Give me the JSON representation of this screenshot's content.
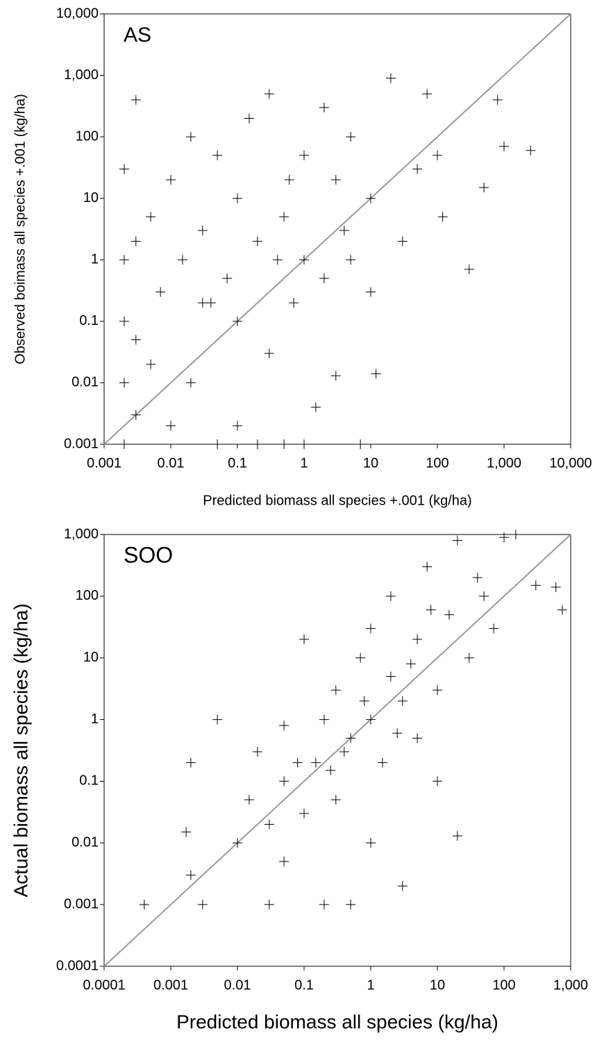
{
  "chart_data": [
    {
      "type": "scatter",
      "annotation": "AS",
      "x_label": "Predicted biomass all species +.001 (kg/ha)",
      "y_label": "Observed boimass all species +.001 (kg/ha)",
      "log_x": true,
      "log_y": true,
      "color": "#000000",
      "xlim": [
        0.001,
        10000
      ],
      "ylim": [
        0.001,
        10000
      ],
      "xticks": [
        0.001,
        0.01,
        0.1,
        1,
        10,
        100,
        {
          "value": 1000,
          "label": "1,000"
        },
        {
          "value": 10000,
          "label": "10,000"
        }
      ],
      "yticks": [
        0.001,
        0.01,
        0.1,
        1,
        10,
        100,
        {
          "value": 1000,
          "label": "1,000"
        },
        {
          "value": 10000,
          "label": "10,000"
        }
      ],
      "x": [
        0.002,
        0.002,
        0.002,
        0.002,
        0.002,
        0.003,
        0.003,
        0.003,
        0.003,
        0.005,
        0.005,
        0.007,
        0.01,
        0.01,
        0.015,
        0.02,
        0.02,
        0.03,
        0.03,
        0.05,
        0.05,
        0.07,
        0.1,
        0.1,
        0.1,
        0.15,
        0.2,
        0.2,
        0.3,
        0.3,
        0.5,
        0.5,
        0.7,
        1,
        1,
        1,
        1.5,
        2,
        2,
        3,
        3,
        5,
        5,
        7,
        10,
        10,
        12,
        20,
        30,
        50,
        70,
        100,
        120,
        300,
        500,
        1000,
        2500,
        800,
        0.04,
        0.4,
        4,
        0.6
      ],
      "values": [
        0.001,
        0.01,
        0.1,
        1,
        30,
        0.003,
        0.05,
        2,
        400,
        0.02,
        5,
        0.3,
        0.002,
        20,
        1,
        0.01,
        100,
        0.2,
        3,
        0.001,
        50,
        0.5,
        0.002,
        0.1,
        10,
        200,
        0.001,
        2,
        0.03,
        500,
        0.001,
        5,
        0.2,
        0.001,
        1,
        50,
        0.004,
        0.5,
        300,
        0.013,
        20,
        1,
        100,
        0.001,
        0.3,
        10,
        0.014,
        900,
        2,
        30,
        500,
        50,
        5,
        0.7,
        15,
        70,
        60,
        400,
        0.2,
        1,
        3,
        20
      ]
    },
    {
      "type": "scatter",
      "annotation": "SOO",
      "x_label": "Predicted biomass all species (kg/ha)",
      "y_label": "Actual biomass all species (kg/ha)",
      "log_x": true,
      "log_y": true,
      "color": "#000000",
      "xlim": [
        0.0001,
        1000
      ],
      "ylim": [
        0.0001,
        1000
      ],
      "xticks": [
        0.0001,
        0.001,
        0.01,
        0.1,
        1,
        10,
        100,
        {
          "value": 1000,
          "label": "1,000"
        }
      ],
      "yticks": [
        0.0001,
        0.001,
        0.01,
        0.1,
        1,
        10,
        100,
        {
          "value": 1000,
          "label": "1,000"
        }
      ],
      "x": [
        0.0004,
        0.002,
        0.0017,
        0.002,
        0.005,
        0.003,
        0.01,
        0.015,
        0.03,
        0.02,
        0.05,
        0.05,
        0.1,
        0.1,
        0.15,
        0.2,
        0.2,
        0.3,
        0.3,
        0.5,
        0.5,
        0.7,
        1,
        1,
        1,
        1.5,
        2,
        2,
        3,
        3,
        5,
        5,
        7,
        10,
        10,
        15,
        20,
        20,
        30,
        50,
        70,
        100,
        150,
        300,
        600,
        750,
        0.05,
        0.08,
        0.4,
        0.8,
        4,
        8,
        0.25,
        2.5,
        40,
        0.03
      ],
      "values": [
        0.001,
        0.2,
        0.015,
        0.003,
        1,
        0.001,
        0.01,
        0.05,
        0.001,
        0.3,
        0.005,
        0.1,
        20,
        0.03,
        0.2,
        0.001,
        1,
        0.05,
        3,
        0.001,
        0.5,
        10,
        0.01,
        1,
        30,
        0.2,
        5,
        100,
        0.002,
        2,
        0.5,
        20,
        300,
        3,
        0.1,
        50,
        0.013,
        800,
        10,
        100,
        30,
        900,
        1000,
        150,
        140,
        60,
        0.8,
        0.2,
        0.3,
        2,
        8,
        60,
        0.15,
        0.6,
        200,
        0.02
      ]
    }
  ]
}
